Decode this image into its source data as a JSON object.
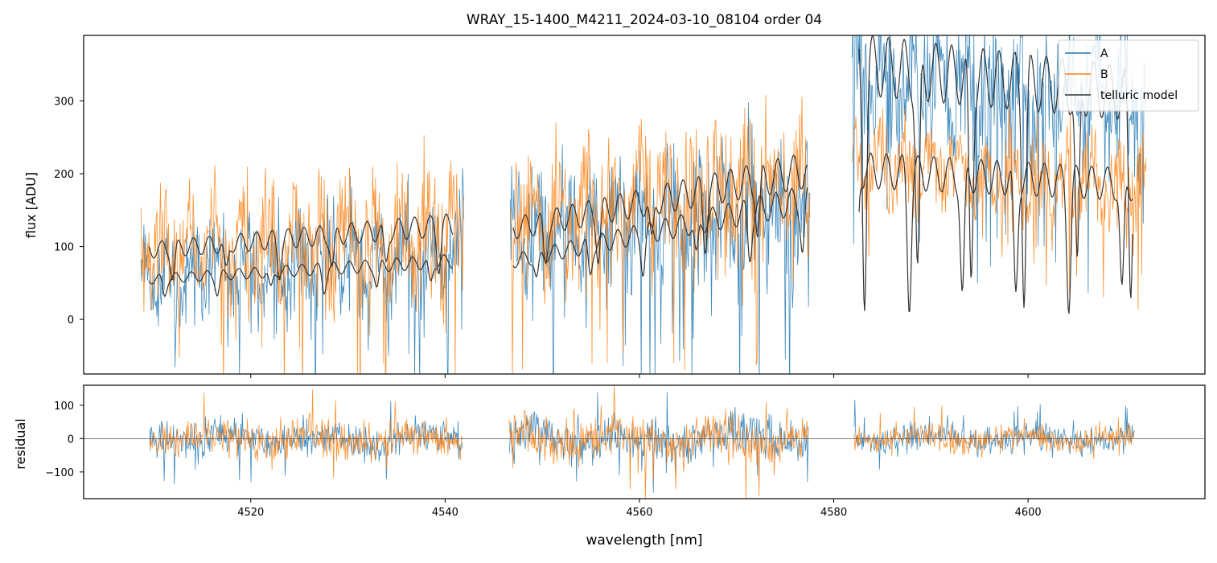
{
  "figure": {
    "title": "WRAY_15-1400_M4211_2024-03-10_08104  order 04",
    "xlabel": "wavelength [nm]"
  },
  "chart_data": [
    {
      "type": "line",
      "panel": "top",
      "title": "WRAY_15-1400_M4211_2024-03-10_08104  order 04",
      "xlabel": "",
      "ylabel": "flux [ADU]",
      "xlim": [
        4502.8,
        4618.2
      ],
      "ylim": [
        -75,
        390
      ],
      "y_ticks": [
        0,
        100,
        200,
        300
      ],
      "x_ticks": [
        4520,
        4540,
        4560,
        4580,
        4600
      ],
      "x_tick_labels_shown": false,
      "legend": {
        "placement": "top-right",
        "entries": [
          "A",
          "B",
          "telluric model"
        ]
      },
      "series": [
        {
          "name": "A",
          "color": "#1f77b4",
          "segments": [
            {
              "x_range": [
                4508.7,
                4542.0
              ],
              "continuum": [
                60,
                90
              ],
              "amplitude": [
                75,
                105
              ]
            },
            {
              "x_range": [
                4546.7,
                4577.6
              ],
              "continuum": [
                110,
                165
              ],
              "amplitude": [
                100,
                140
              ]
            },
            {
              "x_range": [
                4581.9,
                4612.2
              ],
              "continuum": [
                330,
                290
              ],
              "amplitude": [
                130,
                130
              ]
            }
          ]
        },
        {
          "name": "B",
          "color": "#ff7f0e",
          "segments": [
            {
              "x_range": [
                4508.7,
                4542.0
              ],
              "continuum": [
                90,
                120
              ],
              "amplitude": [
                90,
                120
              ]
            },
            {
              "x_range": [
                4546.7,
                4577.6
              ],
              "continuum": [
                140,
                190
              ],
              "amplitude": [
                110,
                150
              ]
            },
            {
              "x_range": [
                4581.9,
                4612.2
              ],
              "continuum": [
                210,
                180
              ],
              "amplitude": [
                80,
                80
              ]
            }
          ]
        },
        {
          "name": "telluric model",
          "color": "#333333",
          "segments": [
            {
              "x_range": [
                4509.5,
                4540.8
              ],
              "upper": [
                95,
                130
              ],
              "lower": [
                55,
                80
              ]
            },
            {
              "x_range": [
                4547.0,
                4577.3
              ],
              "upper": [
                125,
                205
              ],
              "lower": [
                80,
                165
              ]
            },
            {
              "x_range": [
                4582.6,
                4610.8
              ],
              "upper": [
                350,
                310
              ],
              "lower": [
                205,
                185
              ]
            }
          ]
        }
      ]
    },
    {
      "type": "line",
      "panel": "bottom",
      "xlabel": "wavelength [nm]",
      "ylabel": "residual",
      "xlim": [
        4502.8,
        4618.2
      ],
      "ylim": [
        -180,
        160
      ],
      "y_ticks": [
        -100,
        0,
        100
      ],
      "x_ticks": [
        4520,
        4540,
        4560,
        4580,
        4600
      ],
      "zero_line": true,
      "series": [
        {
          "name": "A",
          "color": "#1f77b4",
          "segments": [
            {
              "x_range": [
                4509.6,
                4541.8
              ],
              "spread": 60
            },
            {
              "x_range": [
                4546.6,
                4577.4
              ],
              "spread": 75
            },
            {
              "x_range": [
                4582.1,
                4611.0
              ],
              "spread": 45
            }
          ]
        },
        {
          "name": "B",
          "color": "#ff7f0e",
          "segments": [
            {
              "x_range": [
                4509.6,
                4541.8
              ],
              "spread": 60
            },
            {
              "x_range": [
                4546.6,
                4577.4
              ],
              "spread": 75
            },
            {
              "x_range": [
                4582.1,
                4611.0
              ],
              "spread": 45
            }
          ]
        }
      ]
    }
  ]
}
